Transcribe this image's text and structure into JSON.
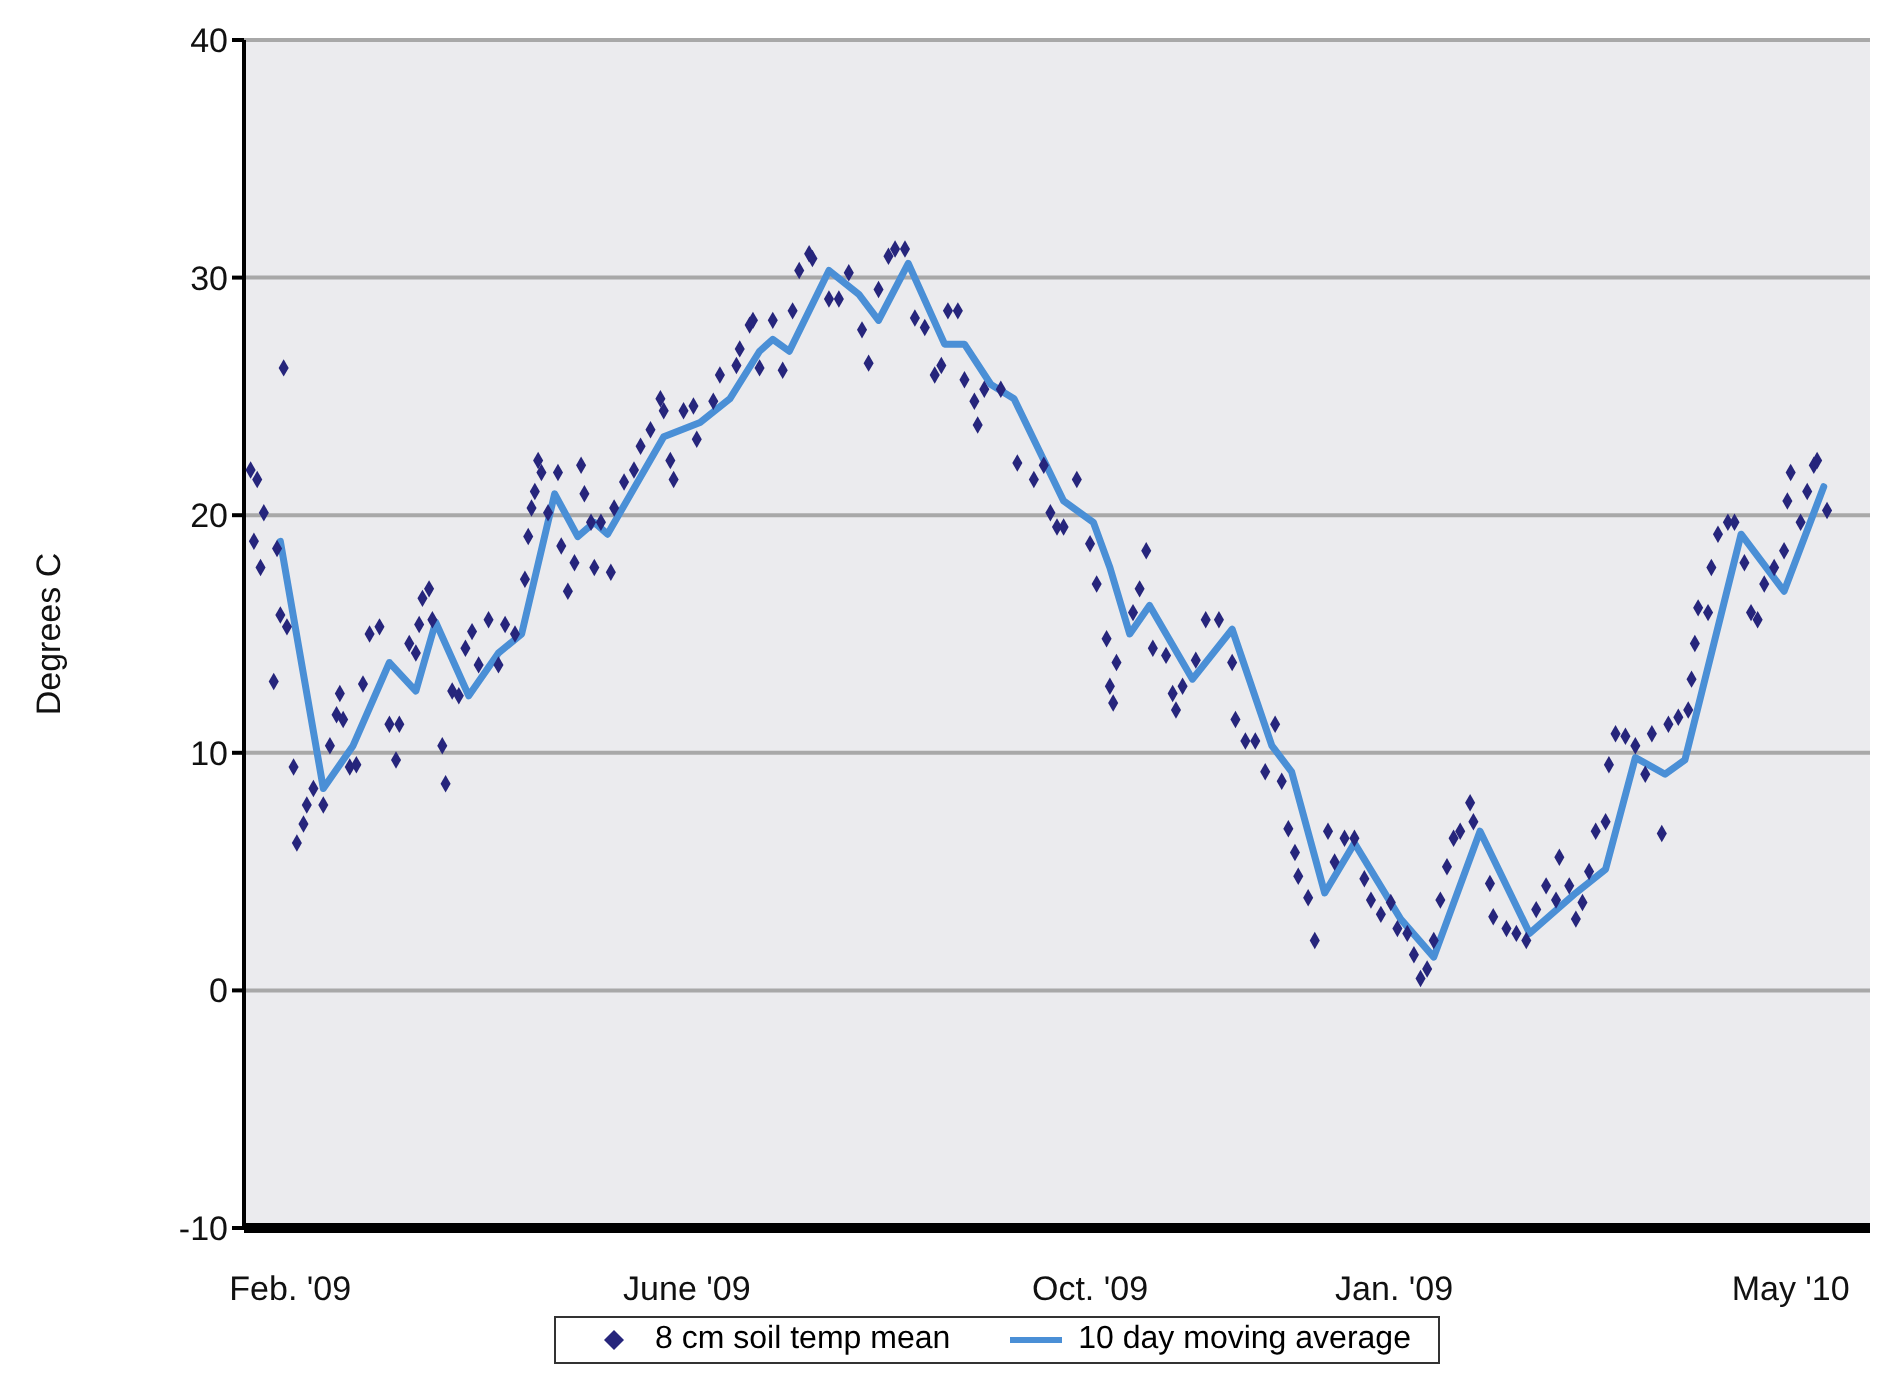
{
  "chart_data": {
    "type": "line",
    "ylabel": "Degrees C",
    "ylim": [
      -10,
      40
    ],
    "yticks": [
      -10,
      0,
      10,
      20,
      30,
      40
    ],
    "xlim": [
      "2009-01-18",
      "2010-05-25"
    ],
    "xticks": [
      {
        "value": "2009-02-01",
        "label": "Feb. '09"
      },
      {
        "value": "2009-06-01",
        "label": "June '09"
      },
      {
        "value": "2009-10-01",
        "label": "Oct. '09"
      },
      {
        "value": "2010-01-01",
        "label": "Jan. '09"
      },
      {
        "value": "2010-05-01",
        "label": "May '10"
      }
    ],
    "grid": "y",
    "legend": "bottom",
    "series": [
      {
        "name": "8 cm soil temp mean",
        "type": "scatter",
        "marker": "diamond",
        "color": "#26257c",
        "x": [
          "2009-01-20",
          "2009-01-21",
          "2009-01-22",
          "2009-01-23",
          "2009-01-24",
          "2009-01-27",
          "2009-01-28",
          "2009-01-29",
          "2009-01-30",
          "2009-01-31",
          "2009-02-02",
          "2009-02-03",
          "2009-02-05",
          "2009-02-06",
          "2009-02-08",
          "2009-02-11",
          "2009-02-13",
          "2009-02-15",
          "2009-02-16",
          "2009-02-17",
          "2009-02-19",
          "2009-02-21",
          "2009-02-23",
          "2009-02-25",
          "2009-02-28",
          "2009-03-03",
          "2009-03-05",
          "2009-03-06",
          "2009-03-09",
          "2009-03-11",
          "2009-03-12",
          "2009-03-13",
          "2009-03-15",
          "2009-03-16",
          "2009-03-19",
          "2009-03-20",
          "2009-03-22",
          "2009-03-24",
          "2009-03-26",
          "2009-03-28",
          "2009-03-30",
          "2009-04-02",
          "2009-04-05",
          "2009-04-07",
          "2009-04-10",
          "2009-04-13",
          "2009-04-14",
          "2009-04-15",
          "2009-04-16",
          "2009-04-17",
          "2009-04-18",
          "2009-04-20",
          "2009-04-23",
          "2009-04-24",
          "2009-04-26",
          "2009-04-28",
          "2009-04-30",
          "2009-05-01",
          "2009-05-03",
          "2009-05-04",
          "2009-05-06",
          "2009-05-09",
          "2009-05-10",
          "2009-05-13",
          "2009-05-16",
          "2009-05-18",
          "2009-05-21",
          "2009-05-24",
          "2009-05-25",
          "2009-05-27",
          "2009-05-28",
          "2009-05-31",
          "2009-06-03",
          "2009-06-04",
          "2009-06-09",
          "2009-06-11",
          "2009-06-16",
          "2009-06-17",
          "2009-06-20",
          "2009-06-21",
          "2009-06-23",
          "2009-06-27",
          "2009-06-30",
          "2009-07-03",
          "2009-07-05",
          "2009-07-08",
          "2009-07-09",
          "2009-07-14",
          "2009-07-17",
          "2009-07-20",
          "2009-07-24",
          "2009-07-26",
          "2009-07-29",
          "2009-08-01",
          "2009-08-03",
          "2009-08-06",
          "2009-08-09",
          "2009-08-12",
          "2009-08-15",
          "2009-08-17",
          "2009-08-19",
          "2009-08-22",
          "2009-08-24",
          "2009-08-27",
          "2009-08-28",
          "2009-08-30",
          "2009-09-04",
          "2009-09-09",
          "2009-09-14",
          "2009-09-17",
          "2009-09-19",
          "2009-09-21",
          "2009-09-23",
          "2009-09-27",
          "2009-10-01",
          "2009-10-03",
          "2009-10-06",
          "2009-10-07",
          "2009-10-08",
          "2009-10-09",
          "2009-10-14",
          "2009-10-16",
          "2009-10-18",
          "2009-10-20",
          "2009-10-24",
          "2009-10-26",
          "2009-10-27",
          "2009-10-29",
          "2009-11-02",
          "2009-11-05",
          "2009-11-09",
          "2009-11-13",
          "2009-11-14",
          "2009-11-17",
          "2009-11-20",
          "2009-11-23",
          "2009-11-26",
          "2009-11-28",
          "2009-11-30",
          "2009-12-02",
          "2009-12-03",
          "2009-12-06",
          "2009-12-08",
          "2009-12-12",
          "2009-12-14",
          "2009-12-17",
          "2009-12-20",
          "2009-12-23",
          "2009-12-25",
          "2009-12-28",
          "2009-12-31",
          "2010-01-02",
          "2010-01-05",
          "2010-01-07",
          "2010-01-09",
          "2010-01-11",
          "2010-01-13",
          "2010-01-15",
          "2010-01-17",
          "2010-01-19",
          "2010-01-21",
          "2010-01-24",
          "2010-01-25",
          "2010-01-30",
          "2010-01-31",
          "2010-02-04",
          "2010-02-07",
          "2010-02-10",
          "2010-02-13",
          "2010-02-16",
          "2010-02-19",
          "2010-02-20",
          "2010-02-23",
          "2010-02-25",
          "2010-02-27",
          "2010-03-01",
          "2010-03-03",
          "2010-03-06",
          "2010-03-07",
          "2010-03-09",
          "2010-03-12",
          "2010-03-15",
          "2010-03-18",
          "2010-03-20",
          "2010-03-23",
          "2010-03-25",
          "2010-03-28",
          "2010-03-31",
          "2010-04-01",
          "2010-04-02",
          "2010-04-03",
          "2010-04-06",
          "2010-04-07",
          "2010-04-09",
          "2010-04-12",
          "2010-04-14",
          "2010-04-17",
          "2010-04-19",
          "2010-04-21",
          "2010-04-23",
          "2010-04-26",
          "2010-04-29",
          "2010-04-30",
          "2010-05-01",
          "2010-05-04",
          "2010-05-06",
          "2010-05-08",
          "2010-05-09",
          "2010-05-12"
        ],
        "values": [
          21.9,
          18.9,
          21.5,
          17.8,
          20.1,
          13.0,
          18.6,
          15.8,
          26.2,
          15.3,
          9.4,
          6.2,
          7.0,
          7.8,
          8.5,
          7.8,
          10.3,
          11.6,
          12.5,
          11.4,
          9.4,
          9.5,
          12.9,
          15.0,
          15.3,
          11.2,
          9.7,
          11.2,
          14.6,
          14.2,
          15.4,
          16.5,
          16.9,
          15.6,
          10.3,
          8.7,
          12.6,
          12.4,
          14.4,
          15.1,
          13.7,
          15.6,
          13.7,
          15.4,
          15.0,
          17.3,
          19.1,
          20.3,
          21.0,
          22.3,
          21.8,
          20.1,
          21.8,
          18.7,
          16.8,
          18.0,
          22.1,
          20.9,
          19.7,
          17.8,
          19.7,
          17.6,
          20.3,
          21.4,
          21.9,
          22.9,
          23.6,
          24.9,
          24.4,
          22.3,
          21.5,
          24.4,
          24.6,
          23.2,
          24.8,
          25.9,
          26.3,
          27.0,
          28.0,
          28.2,
          26.2,
          28.2,
          26.1,
          28.6,
          30.3,
          31.0,
          30.8,
          29.1,
          29.1,
          30.2,
          27.8,
          26.4,
          29.5,
          30.9,
          31.2,
          31.2,
          28.3,
          27.9,
          25.9,
          26.3,
          28.6,
          28.6,
          25.7,
          24.8,
          23.8,
          25.3,
          25.3,
          22.2,
          21.5,
          22.1,
          20.1,
          19.5,
          19.5,
          21.5,
          18.8,
          17.1,
          14.8,
          12.8,
          12.1,
          13.8,
          15.9,
          16.9,
          18.5,
          14.4,
          14.1,
          12.5,
          11.8,
          12.8,
          13.9,
          15.6,
          15.6,
          13.8,
          11.4,
          10.5,
          10.5,
          9.2,
          11.2,
          8.8,
          6.8,
          5.8,
          4.8,
          3.9,
          2.1,
          6.7,
          5.4,
          6.4,
          6.4,
          4.7,
          3.8,
          3.2,
          3.7,
          2.6,
          2.4,
          1.5,
          0.5,
          0.9,
          2.1,
          3.8,
          5.2,
          6.4,
          6.7,
          7.9,
          7.1,
          4.5,
          3.1,
          2.6,
          2.4,
          2.1,
          3.4,
          4.4,
          3.8,
          5.6,
          4.4,
          3.0,
          3.7,
          5.0,
          6.7,
          7.1,
          9.5,
          10.8,
          10.7,
          10.3,
          9.1,
          10.8,
          6.6,
          11.2,
          11.5,
          11.8,
          13.1,
          14.6,
          16.1,
          15.9,
          17.8,
          19.2,
          19.7,
          19.7,
          18.0,
          15.9,
          15.6,
          17.1,
          17.8,
          18.5,
          20.6,
          21.8,
          19.7,
          21.0,
          22.1,
          22.3,
          20.2
        ]
      },
      {
        "name": "10 day moving average",
        "marker": "none",
        "line_style": "solid",
        "color": "#4a8fd6",
        "x": [
          "2009-01-29",
          "2009-02-11",
          "2009-02-20",
          "2009-03-03",
          "2009-03-11",
          "2009-03-17",
          "2009-03-27",
          "2009-04-05",
          "2009-04-12",
          "2009-04-22",
          "2009-04-29",
          "2009-05-04",
          "2009-05-08",
          "2009-05-25",
          "2009-06-05",
          "2009-06-14",
          "2009-06-23",
          "2009-06-27",
          "2009-07-02",
          "2009-07-14",
          "2009-07-23",
          "2009-07-29",
          "2009-08-07",
          "2009-08-18",
          "2009-08-24",
          "2009-09-01",
          "2009-09-08",
          "2009-09-23",
          "2009-10-02",
          "2009-10-07",
          "2009-10-13",
          "2009-10-19",
          "2009-11-01",
          "2009-11-13",
          "2009-11-25",
          "2009-12-01",
          "2009-12-11",
          "2009-12-20",
          "2010-01-03",
          "2010-01-13",
          "2010-01-27",
          "2010-02-11",
          "2010-02-25",
          "2010-03-06",
          "2010-03-15",
          "2010-03-24",
          "2010-03-30",
          "2010-04-16",
          "2010-04-29",
          "2010-05-11"
        ],
        "values": [
          18.9,
          8.5,
          10.3,
          13.8,
          12.6,
          15.5,
          12.4,
          14.2,
          15.0,
          20.9,
          19.1,
          19.7,
          19.2,
          23.3,
          23.9,
          24.9,
          26.9,
          27.4,
          26.9,
          30.3,
          29.3,
          28.2,
          30.6,
          27.2,
          27.2,
          25.5,
          24.9,
          20.6,
          19.7,
          17.8,
          15.0,
          16.2,
          13.1,
          15.2,
          10.3,
          9.2,
          4.1,
          6.2,
          3.0,
          1.4,
          6.7,
          2.4,
          4.1,
          5.1,
          9.8,
          9.1,
          9.7,
          19.2,
          16.8,
          21.2
        ]
      }
    ]
  }
}
